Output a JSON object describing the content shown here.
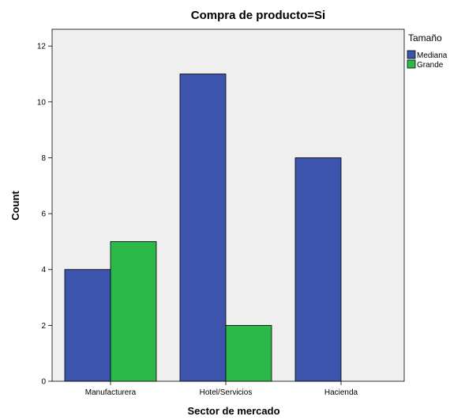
{
  "chart_data": {
    "type": "bar",
    "title": "Compra de producto=Si",
    "xlabel": "Sector de mercado",
    "ylabel": "Count",
    "categories": [
      "Manufacturera",
      "Hotel/Servicios",
      "Hacienda"
    ],
    "series": [
      {
        "name": "Mediana",
        "values": [
          4,
          11,
          8
        ],
        "color": "#3d54ac"
      },
      {
        "name": "Grande",
        "values": [
          5,
          2,
          0
        ],
        "color": "#2db84a"
      }
    ],
    "ylim": [
      0,
      12.6
    ],
    "yticks": [
      0,
      2,
      4,
      6,
      8,
      10,
      12
    ],
    "legend": {
      "title": "Tamaño",
      "position": "right"
    },
    "plot_background": "#efefef",
    "grid": false
  }
}
